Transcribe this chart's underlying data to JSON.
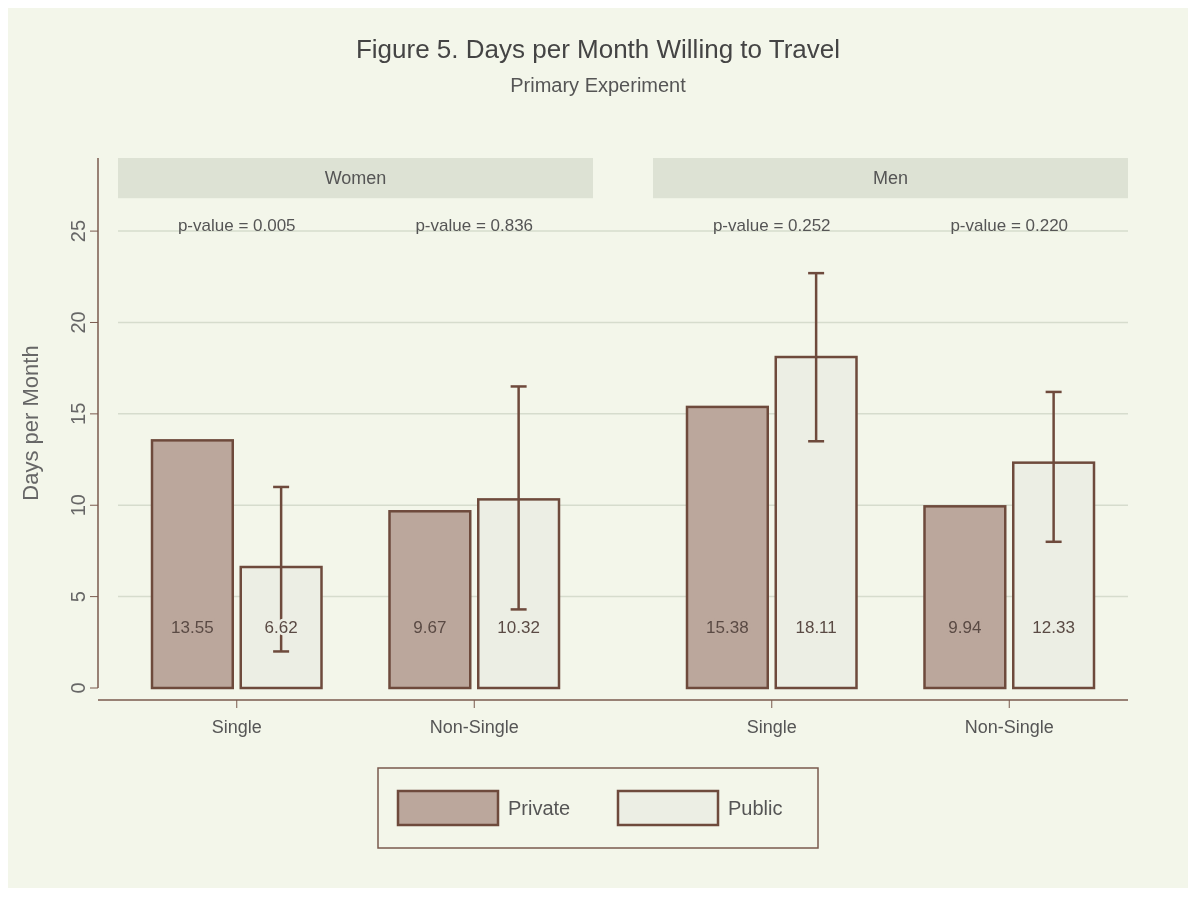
{
  "chart_data": {
    "type": "bar",
    "title": "Figure 5. Days per Month Willing to Travel",
    "subtitle": "Primary Experiment",
    "ylabel": "Days per Month",
    "categories": [
      "Single",
      "Non-Single",
      "Single",
      "Non-Single"
    ],
    "series": [
      {
        "name": "Private",
        "color": "#bba79c",
        "values": [
          13.55,
          9.67,
          15.38,
          9.94
        ]
      },
      {
        "name": "Public",
        "color": "#eceee4",
        "values": [
          6.62,
          10.32,
          18.11,
          12.33
        ],
        "errors": [
          [
            2.0,
            11.0
          ],
          [
            4.3,
            16.5
          ],
          [
            13.5,
            22.7
          ],
          [
            8.0,
            16.2
          ]
        ]
      }
    ],
    "annotations": [
      "Women",
      "Men",
      "p-value = 0.005",
      "p-value = 0.836",
      "p-value = 0.252",
      "p-value = 0.220"
    ],
    "ylim": [
      0,
      29
    ],
    "yticks": [
      0,
      5,
      10,
      15,
      20,
      25
    ],
    "grid": "y",
    "legend": "bottom",
    "data_labels": true
  }
}
